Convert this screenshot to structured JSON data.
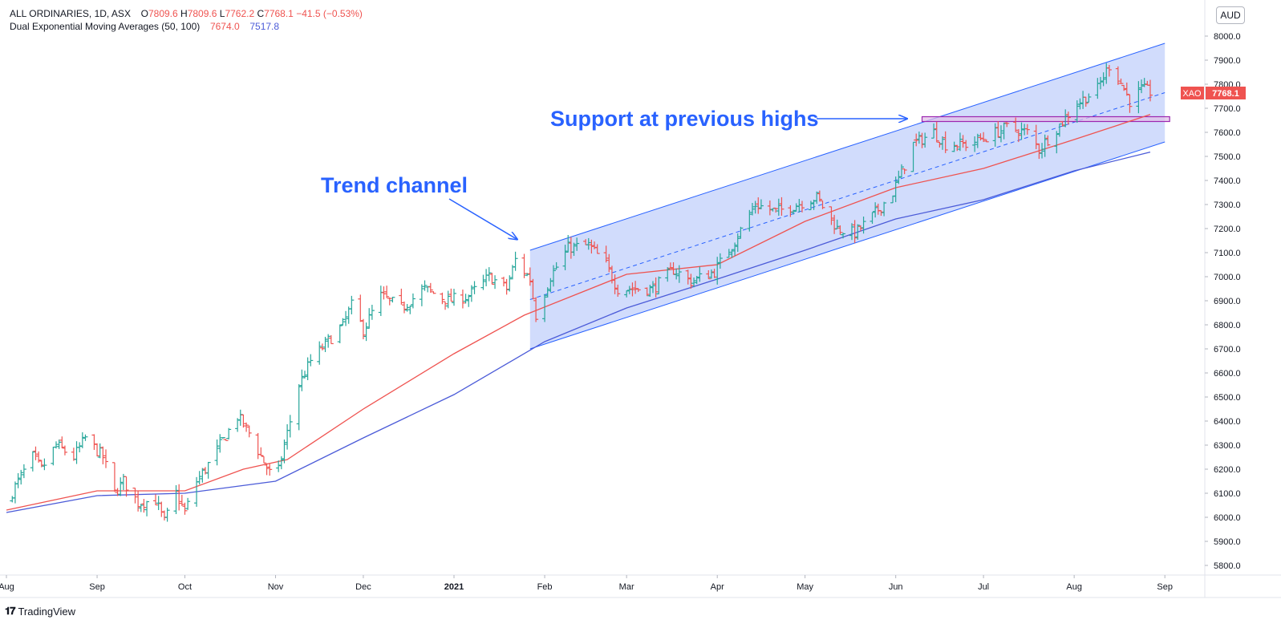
{
  "legend": {
    "symbol": "ALL ORDINARIES, 1D, ASX",
    "o_label": "O",
    "o": "7809.6",
    "h_label": "H",
    "h": "7809.6",
    "l_label": "L",
    "l": "7762.2",
    "c_label": "C",
    "c": "7768.1",
    "change": "−41.5 (−0.53%)",
    "indicator": "Dual Exponential Moving Averages (50, 100)",
    "ma50": "7674.0",
    "ma100": "7517.8"
  },
  "currency": "AUD",
  "branding": "TradingView",
  "price_label": {
    "ticker": "XAO",
    "value": "7768.1"
  },
  "annotations": {
    "trend_channel": "Trend channel",
    "support": "Support at previous highs"
  },
  "colors": {
    "up": "#26a69a",
    "down": "#ef5350",
    "ma50": "#ef5350",
    "ma100": "#4b5bd8",
    "channel_fill": "#c9d6fb",
    "channel_line": "#2962ff",
    "support_box": "#9c27b0",
    "annotation_text": "#2962ff"
  },
  "chart_data": {
    "type": "ohlc",
    "y_axis": {
      "ticks": [
        "5800.0",
        "5900.0",
        "6000.0",
        "6100.0",
        "6200.0",
        "6300.0",
        "6400.0",
        "6500.0",
        "6600.0",
        "6700.0",
        "6800.0",
        "6900.0",
        "7000.0",
        "7100.0",
        "7200.0",
        "7300.0",
        "7400.0",
        "7500.0",
        "7600.0",
        "7700.0",
        "7800.0",
        "7900.0",
        "8000.0"
      ],
      "range": [
        5740,
        8060
      ],
      "position": "right"
    },
    "x_axis": {
      "labels": [
        "Aug",
        "Sep",
        "Oct",
        "Nov",
        "Dec",
        "2021",
        "Feb",
        "Mar",
        "Apr",
        "May",
        "Jun",
        "Jul",
        "Aug",
        "Sep"
      ],
      "dates": [
        "2020-08-01",
        "2020-09-01",
        "2020-10-01",
        "2020-11-01",
        "2020-12-01",
        "2021-01-01",
        "2021-02-01",
        "2021-03-01",
        "2021-04-01",
        "2021-05-01",
        "2021-06-01",
        "2021-07-01",
        "2021-08-01",
        "2021-09-01"
      ],
      "range": [
        "2020-08-01",
        "2021-09-23"
      ]
    },
    "close_path": [
      [
        "2020-08-01",
        6060
      ],
      [
        "2020-08-05",
        6150
      ],
      [
        "2020-08-10",
        6250
      ],
      [
        "2020-08-13",
        6200
      ],
      [
        "2020-08-18",
        6300
      ],
      [
        "2020-08-24",
        6250
      ],
      [
        "2020-08-28",
        6330
      ],
      [
        "2020-09-03",
        6250
      ],
      [
        "2020-09-07",
        6100
      ],
      [
        "2020-09-10",
        6150
      ],
      [
        "2020-09-15",
        6060
      ],
      [
        "2020-09-21",
        6070
      ],
      [
        "2020-09-24",
        5980
      ],
      [
        "2020-09-28",
        6100
      ],
      [
        "2020-10-01",
        6020
      ],
      [
        "2020-10-05",
        6150
      ],
      [
        "2020-10-08",
        6200
      ],
      [
        "2020-10-13",
        6300
      ],
      [
        "2020-10-19",
        6420
      ],
      [
        "2020-10-23",
        6350
      ],
      [
        "2020-10-28",
        6230
      ],
      [
        "2020-11-01",
        6140
      ],
      [
        "2020-11-04",
        6300
      ],
      [
        "2020-11-09",
        6550
      ],
      [
        "2020-11-13",
        6650
      ],
      [
        "2020-11-18",
        6720
      ],
      [
        "2020-11-24",
        6800
      ],
      [
        "2020-11-27",
        6880
      ],
      [
        "2020-12-01",
        6780
      ],
      [
        "2020-12-07",
        6920
      ],
      [
        "2020-12-14",
        6870
      ],
      [
        "2020-12-22",
        6950
      ],
      [
        "2020-12-30",
        6900
      ],
      [
        "2021-01-06",
        6920
      ],
      [
        "2021-01-13",
        7000
      ],
      [
        "2021-01-19",
        6950
      ],
      [
        "2021-01-22",
        7070
      ],
      [
        "2021-01-27",
        6990
      ],
      [
        "2021-01-29",
        6840
      ],
      [
        "2021-02-03",
        7000
      ],
      [
        "2021-02-09",
        7120
      ],
      [
        "2021-02-16",
        7130
      ],
      [
        "2021-02-22",
        7050
      ],
      [
        "2021-02-26",
        6950
      ],
      [
        "2021-03-04",
        6950
      ],
      [
        "2021-03-10",
        6950
      ],
      [
        "2021-03-17",
        7030
      ],
      [
        "2021-03-23",
        6980
      ],
      [
        "2021-03-31",
        7020
      ],
      [
        "2021-04-07",
        7150
      ],
      [
        "2021-04-14",
        7300
      ],
      [
        "2021-04-21",
        7270
      ],
      [
        "2021-04-28",
        7300
      ],
      [
        "2021-05-05",
        7330
      ],
      [
        "2021-05-12",
        7200
      ],
      [
        "2021-05-18",
        7180
      ],
      [
        "2021-05-24",
        7250
      ],
      [
        "2021-05-31",
        7350
      ],
      [
        "2021-06-07",
        7550
      ],
      [
        "2021-06-14",
        7600
      ],
      [
        "2021-06-18",
        7550
      ],
      [
        "2021-06-25",
        7550
      ],
      [
        "2021-07-02",
        7580
      ],
      [
        "2021-07-09",
        7620
      ],
      [
        "2021-07-16",
        7600
      ],
      [
        "2021-07-20",
        7530
      ],
      [
        "2021-07-27",
        7630
      ],
      [
        "2021-08-02",
        7720
      ],
      [
        "2021-08-09",
        7780
      ],
      [
        "2021-08-13",
        7880
      ],
      [
        "2021-08-16",
        7830
      ],
      [
        "2021-08-20",
        7730
      ],
      [
        "2021-08-24",
        7780
      ],
      [
        "2021-08-27",
        7768.1
      ]
    ],
    "series": [
      {
        "name": "Dual Exponential Moving Averages (50, 100)",
        "period": 50,
        "type": "line",
        "points": [
          [
            "2020-08-01",
            6030
          ],
          [
            "2020-09-01",
            6110
          ],
          [
            "2020-10-01",
            6110
          ],
          [
            "2020-10-21",
            6200
          ],
          [
            "2020-11-05",
            6240
          ],
          [
            "2020-12-01",
            6450
          ],
          [
            "2021-01-01",
            6680
          ],
          [
            "2021-01-25",
            6840
          ],
          [
            "2021-03-01",
            7010
          ],
          [
            "2021-04-01",
            7050
          ],
          [
            "2021-05-01",
            7230
          ],
          [
            "2021-06-01",
            7370
          ],
          [
            "2021-07-01",
            7450
          ],
          [
            "2021-08-01",
            7570
          ],
          [
            "2021-08-27",
            7674
          ]
        ]
      },
      {
        "name": "Dual Exponential Moving Averages (50, 100)",
        "period": 100,
        "type": "line",
        "points": [
          [
            "2020-08-01",
            6020
          ],
          [
            "2020-09-01",
            6090
          ],
          [
            "2020-10-01",
            6100
          ],
          [
            "2020-11-01",
            6150
          ],
          [
            "2020-12-01",
            6330
          ],
          [
            "2021-01-01",
            6510
          ],
          [
            "2021-02-01",
            6730
          ],
          [
            "2021-03-01",
            6870
          ],
          [
            "2021-04-01",
            6990
          ],
          [
            "2021-05-01",
            7110
          ],
          [
            "2021-06-01",
            7240
          ],
          [
            "2021-07-01",
            7320
          ],
          [
            "2021-08-01",
            7440
          ],
          [
            "2021-08-27",
            7517.8
          ]
        ]
      }
    ],
    "trend_channel": {
      "start": "2021-01-27",
      "end": "2021-09-01",
      "upper": [
        7110,
        7970
      ],
      "lower": [
        6700,
        7560
      ],
      "mid": [
        6905,
        7765
      ]
    },
    "support_zone": {
      "start": "2021-06-10",
      "end": "2021-09-01",
      "low": 7645,
      "high": 7665
    },
    "grid": false,
    "legend_position": "top-left"
  }
}
